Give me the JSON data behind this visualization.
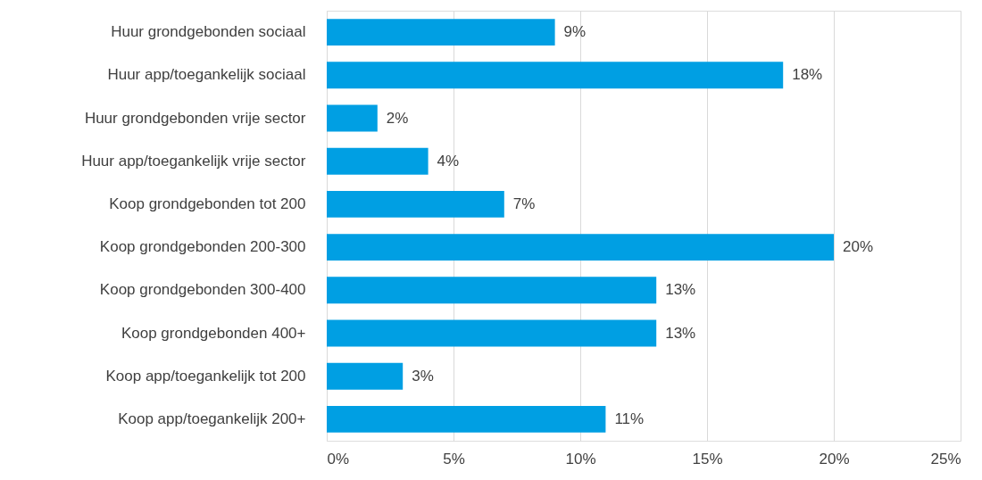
{
  "chart_data": {
    "type": "bar",
    "orientation": "horizontal",
    "categories": [
      "Huur grondgebonden sociaal",
      "Huur app/toegankelijk sociaal",
      "Huur grondgebonden vrije sector",
      "Huur app/toegankelijk vrije sector",
      "Koop grondgebonden tot 200",
      "Koop grondgebonden 200-300",
      "Koop grondgebonden 300-400",
      "Koop grondgebonden 400+",
      "Koop app/toegankelijk tot 200",
      "Koop app/toegankelijk 200+"
    ],
    "values": [
      9,
      18,
      2,
      4,
      7,
      20,
      13,
      13,
      3,
      11
    ],
    "value_labels": [
      "9%",
      "18%",
      "2%",
      "4%",
      "7%",
      "20%",
      "13%",
      "13%",
      "3%",
      "11%"
    ],
    "color": "#009fe3",
    "xlim": [
      0,
      25
    ],
    "xticks": [
      {
        "value": 0,
        "label": "0%"
      },
      {
        "value": 5,
        "label": "5%"
      },
      {
        "value": 10,
        "label": "10%"
      },
      {
        "value": 15,
        "label": "15%"
      },
      {
        "value": 20,
        "label": "20%"
      },
      {
        "value": 25,
        "label": "25%"
      }
    ],
    "grid": "x"
  }
}
